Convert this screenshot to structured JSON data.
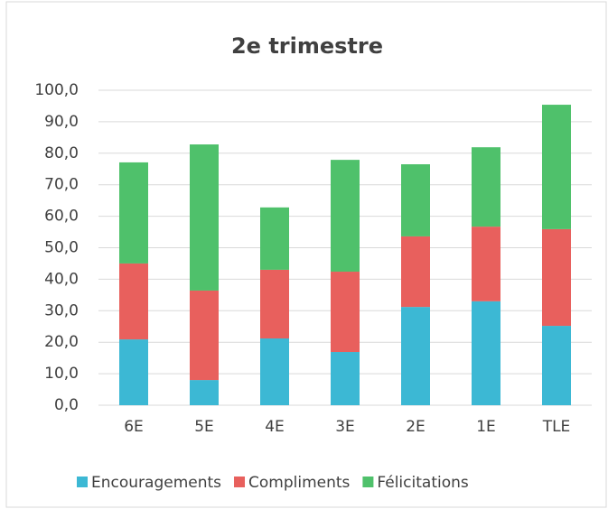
{
  "chart_data": {
    "type": "bar",
    "stacked": true,
    "title": "2e trimestre",
    "categories": [
      "6E",
      "5E",
      "4E",
      "3E",
      "2E",
      "1E",
      "TLE"
    ],
    "series": [
      {
        "name": "Encouragements",
        "color": "#3cb8d4",
        "values": [
          20.9,
          8.0,
          21.2,
          16.9,
          31.2,
          33.0,
          25.2
        ]
      },
      {
        "name": "Compliments",
        "color": "#e8605d",
        "values": [
          24.1,
          28.4,
          21.8,
          25.5,
          22.4,
          23.7,
          30.7
        ]
      },
      {
        "name": "Félicitations",
        "color": "#4fc16b",
        "values": [
          32.1,
          46.4,
          19.8,
          35.5,
          22.9,
          25.2,
          39.5
        ]
      }
    ],
    "ylim": [
      0,
      100
    ],
    "yticks": [
      {
        "value": 0,
        "label": "0,0"
      },
      {
        "value": 10,
        "label": "10,0"
      },
      {
        "value": 20,
        "label": "20,0"
      },
      {
        "value": 30,
        "label": "30,0"
      },
      {
        "value": 40,
        "label": "40,0"
      },
      {
        "value": 50,
        "label": "50,0"
      },
      {
        "value": 60,
        "label": "60,0"
      },
      {
        "value": 70,
        "label": "70,0"
      },
      {
        "value": 80,
        "label": "80,0"
      },
      {
        "value": 90,
        "label": "90,0"
      },
      {
        "value": 100,
        "label": "100,0"
      }
    ],
    "grid": true,
    "legend": "bottom"
  }
}
